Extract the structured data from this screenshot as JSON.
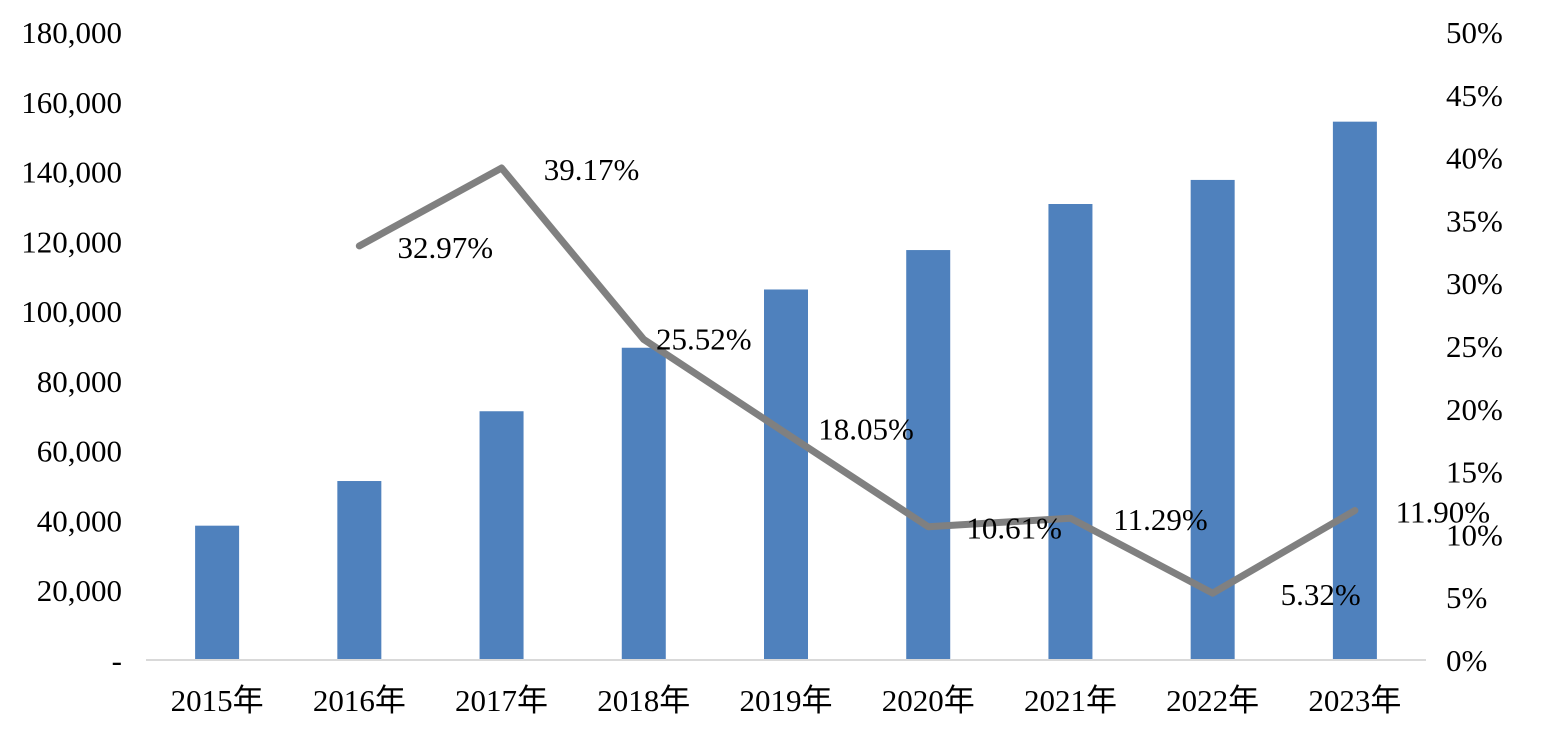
{
  "chart_data": {
    "type": "bar+line",
    "title": "",
    "categories": [
      "2015年",
      "2016年",
      "2017年",
      "2018年",
      "2019年",
      "2020年",
      "2021年",
      "2022年",
      "2023年"
    ],
    "series": [
      {
        "type": "bar",
        "axis": "left",
        "color": "#4f81bd",
        "values": [
          38500,
          51300,
          71300,
          89500,
          106200,
          117500,
          130700,
          137600,
          154300
        ]
      },
      {
        "type": "line",
        "axis": "right",
        "color": "#808080",
        "values": [
          null,
          32.97,
          39.17,
          25.52,
          18.05,
          10.61,
          11.29,
          5.32,
          11.9
        ],
        "data_labels": [
          "",
          "32.97%",
          "39.17%",
          "25.52%",
          "18.05%",
          "10.61%",
          "11.29%",
          "5.32%",
          "11.90%"
        ]
      }
    ],
    "left_axis": {
      "min": 0,
      "max": 180000,
      "tick_labels": [
        "-",
        "20,000",
        "40,000",
        "60,000",
        "80,000",
        "100,000",
        "120,000",
        "140,000",
        "160,000",
        "180,000"
      ]
    },
    "right_axis": {
      "min": 0,
      "max": 50,
      "tick_labels": [
        "0%",
        "5%",
        "10%",
        "15%",
        "20%",
        "25%",
        "30%",
        "35%",
        "40%",
        "45%",
        "50%"
      ]
    },
    "grid": false,
    "legend": "none"
  }
}
